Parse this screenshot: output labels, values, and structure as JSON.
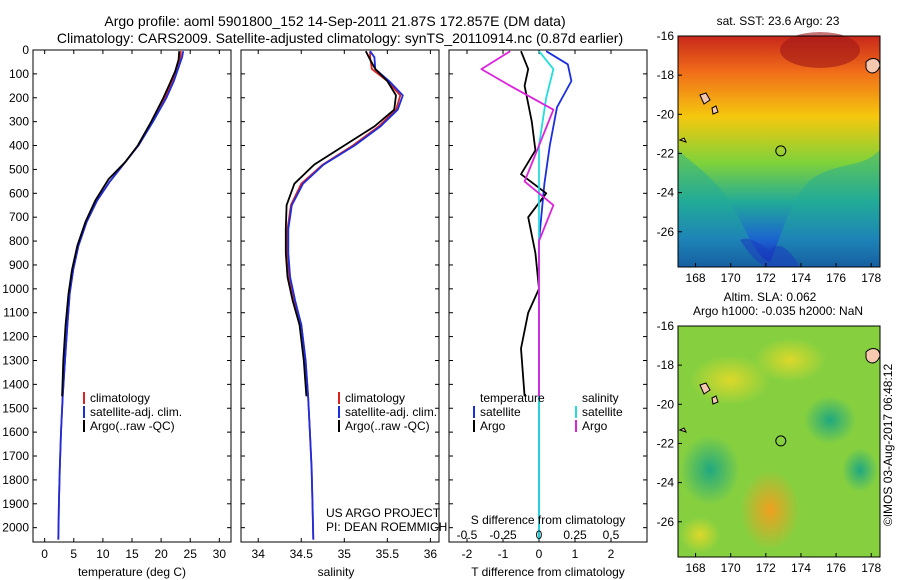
{
  "titles": {
    "line1": "Argo profile: aoml 5901800_152 14-Sep-2011 21.87S 172.857E (DM data)",
    "line2": "Climatology: CARS2009. Satellite-adjusted climatology: synTS_20110914.nc (0.87d earlier)"
  },
  "colors": {
    "climatology": "#dd2222",
    "satellite": "#1a2ee0",
    "argo": "#000000",
    "salinity_sat": "#22dddd",
    "salinity_argo": "#dd22dd"
  },
  "legend": {
    "climatology": "climatology",
    "satellite_adj": "satellite-adj. clim.",
    "argo_raw": "Argo(..raw -QC)"
  },
  "diff_legend": {
    "temperature_header": "temperature",
    "salinity_header": "salinity",
    "satellite": "satellite",
    "argo": "Argo"
  },
  "credits": {
    "line1": "US ARGO PROJECT",
    "line2": "PI: DEAN ROEMMICH"
  },
  "map_titles": {
    "sst": "sat. SST: 23.6 Argo: 23",
    "sla1": "Altim. SLA: 0.062",
    "sla2": "Argo h1000: -0.035 h2000: NaN"
  },
  "watermark": "©IMOS 03-Aug-2017 06:48:12",
  "chart_data": [
    {
      "type": "line",
      "name": "temperature",
      "xlabel": "temperature (deg C)",
      "ylabel": "",
      "xlim": [
        -2,
        32
      ],
      "ylim": [
        2060,
        0
      ],
      "xticks": [
        0,
        5,
        10,
        15,
        20,
        25,
        30
      ],
      "yticks": [
        0,
        100,
        200,
        300,
        400,
        500,
        600,
        700,
        800,
        900,
        1000,
        1100,
        1200,
        1300,
        1400,
        1500,
        1600,
        1700,
        1800,
        1900,
        2000
      ],
      "series": [
        {
          "name": "climatology",
          "points": [
            [
              23.4,
              5
            ],
            [
              23.3,
              30
            ],
            [
              22.6,
              80
            ],
            [
              21.9,
              130
            ],
            [
              20.7,
              200
            ],
            [
              18.5,
              300
            ],
            [
              16.1,
              400
            ],
            [
              13.5,
              480
            ],
            [
              11.2,
              550
            ],
            [
              9.0,
              630
            ],
            [
              7.2,
              720
            ],
            [
              5.8,
              820
            ],
            [
              4.9,
              920
            ],
            [
              4.3,
              1020
            ],
            [
              3.9,
              1150
            ],
            [
              3.5,
              1300
            ],
            [
              3.1,
              1450
            ],
            [
              2.8,
              1600
            ],
            [
              2.6,
              1750
            ],
            [
              2.45,
              1900
            ],
            [
              2.35,
              2050
            ]
          ]
        },
        {
          "name": "satellite",
          "points": [
            [
              23.8,
              5
            ],
            [
              23.6,
              30
            ],
            [
              22.9,
              80
            ],
            [
              22.2,
              130
            ],
            [
              20.9,
              200
            ],
            [
              18.6,
              300
            ],
            [
              16.1,
              400
            ],
            [
              13.5,
              480
            ],
            [
              11.2,
              550
            ],
            [
              9.0,
              630
            ],
            [
              7.2,
              720
            ],
            [
              5.8,
              820
            ],
            [
              4.9,
              920
            ],
            [
              4.3,
              1020
            ],
            [
              3.9,
              1150
            ],
            [
              3.5,
              1300
            ],
            [
              3.1,
              1450
            ],
            [
              2.8,
              1600
            ],
            [
              2.6,
              1750
            ],
            [
              2.45,
              1900
            ],
            [
              2.35,
              2050
            ]
          ]
        },
        {
          "name": "argo",
          "points": [
            [
              23.1,
              5
            ],
            [
              23.0,
              40
            ],
            [
              22.4,
              90
            ],
            [
              21.5,
              140
            ],
            [
              20.4,
              200
            ],
            [
              18.3,
              300
            ],
            [
              16.0,
              400
            ],
            [
              13.8,
              470
            ],
            [
              11.0,
              540
            ],
            [
              8.7,
              630
            ],
            [
              7.0,
              720
            ],
            [
              5.6,
              820
            ],
            [
              4.7,
              920
            ],
            [
              4.1,
              1020
            ],
            [
              3.6,
              1150
            ],
            [
              3.2,
              1300
            ],
            [
              3.0,
              1450
            ]
          ]
        }
      ]
    },
    {
      "type": "line",
      "name": "salinity",
      "xlabel": "salinity",
      "ylabel": "",
      "xlim": [
        33.8,
        36.1
      ],
      "ylim": [
        2060,
        0
      ],
      "xticks": [
        34,
        34.5,
        35,
        35.5,
        36
      ],
      "series": [
        {
          "name": "climatology",
          "points": [
            [
              35.3,
              5
            ],
            [
              35.3,
              30
            ],
            [
              35.32,
              80
            ],
            [
              35.5,
              130
            ],
            [
              35.65,
              190
            ],
            [
              35.6,
              250
            ],
            [
              35.4,
              320
            ],
            [
              35.1,
              400
            ],
            [
              34.75,
              480
            ],
            [
              34.5,
              560
            ],
            [
              34.38,
              650
            ],
            [
              34.34,
              750
            ],
            [
              34.34,
              850
            ],
            [
              34.36,
              950
            ],
            [
              34.42,
              1050
            ],
            [
              34.5,
              1150
            ],
            [
              34.55,
              1300
            ],
            [
              34.58,
              1450
            ],
            [
              34.6,
              1600
            ],
            [
              34.62,
              1750
            ],
            [
              34.63,
              1900
            ],
            [
              34.64,
              2050
            ]
          ]
        },
        {
          "name": "satellite",
          "points": [
            [
              35.3,
              5
            ],
            [
              35.35,
              30
            ],
            [
              35.36,
              80
            ],
            [
              35.52,
              130
            ],
            [
              35.68,
              190
            ],
            [
              35.62,
              250
            ],
            [
              35.42,
              320
            ],
            [
              35.12,
              400
            ],
            [
              34.76,
              480
            ],
            [
              34.52,
              560
            ],
            [
              34.39,
              650
            ],
            [
              34.35,
              750
            ],
            [
              34.35,
              850
            ],
            [
              34.37,
              950
            ],
            [
              34.43,
              1050
            ],
            [
              34.5,
              1150
            ],
            [
              34.55,
              1300
            ],
            [
              34.58,
              1450
            ],
            [
              34.6,
              1600
            ],
            [
              34.62,
              1750
            ],
            [
              34.63,
              1900
            ],
            [
              34.64,
              2050
            ]
          ]
        },
        {
          "name": "argo",
          "points": [
            [
              35.25,
              5
            ],
            [
              35.3,
              40
            ],
            [
              35.36,
              80
            ],
            [
              35.5,
              130
            ],
            [
              35.6,
              190
            ],
            [
              35.58,
              250
            ],
            [
              35.35,
              320
            ],
            [
              35.0,
              400
            ],
            [
              34.65,
              480
            ],
            [
              34.42,
              560
            ],
            [
              34.33,
              650
            ],
            [
              34.32,
              750
            ],
            [
              34.32,
              850
            ],
            [
              34.34,
              950
            ],
            [
              34.4,
              1050
            ],
            [
              34.48,
              1150
            ],
            [
              34.53,
              1300
            ],
            [
              34.56,
              1450
            ]
          ]
        }
      ]
    },
    {
      "type": "line",
      "name": "differences",
      "xlabel": "T difference from climatology",
      "xlabel2": "S difference from climatology",
      "xlim": [
        -2.5,
        3
      ],
      "ylim": [
        2060,
        0
      ],
      "xticks": [
        -2,
        -1,
        0,
        1,
        2
      ],
      "sticks_labels": [
        "-0.5",
        "-0.25",
        "0",
        "0.25",
        "0.5"
      ],
      "series": [
        {
          "name": "temperature satellite",
          "points": [
            [
              0.2,
              5
            ],
            [
              0.8,
              60
            ],
            [
              0.9,
              130
            ],
            [
              0.5,
              240
            ],
            [
              0.3,
              400
            ],
            [
              0.15,
              560
            ],
            [
              0.0,
              800
            ],
            [
              0.0,
              1200
            ],
            [
              0.0,
              1600
            ],
            [
              0.0,
              2050
            ]
          ]
        },
        {
          "name": "temperature argo",
          "points": [
            [
              -0.5,
              5
            ],
            [
              -0.3,
              80
            ],
            [
              -0.4,
              150
            ],
            [
              -0.2,
              300
            ],
            [
              -0.1,
              420
            ],
            [
              -0.5,
              520
            ],
            [
              0.2,
              600
            ],
            [
              -0.3,
              700
            ],
            [
              -0.1,
              850
            ],
            [
              0.0,
              1000
            ],
            [
              -0.3,
              1100
            ],
            [
              -0.5,
              1250
            ],
            [
              -0.4,
              1450
            ]
          ]
        },
        {
          "name": "salinity satellite",
          "points": [
            [
              0.0,
              5
            ],
            [
              0.1,
              80
            ],
            [
              0.05,
              200
            ],
            [
              0.0,
              400
            ],
            [
              0.0,
              700
            ],
            [
              0.0,
              1000
            ],
            [
              0.0,
              1500
            ],
            [
              0.0,
              2050
            ]
          ]
        },
        {
          "name": "salinity argo",
          "points": [
            [
              -0.2,
              5
            ],
            [
              -0.4,
              80
            ],
            [
              -0.2,
              150
            ],
            [
              0.1,
              250
            ],
            [
              0.0,
              400
            ],
            [
              -0.1,
              550
            ],
            [
              0.1,
              650
            ],
            [
              0.0,
              800
            ],
            [
              0.0,
              1000
            ],
            [
              0.0,
              1450
            ]
          ]
        }
      ]
    },
    {
      "type": "heatmap",
      "name": "sst-map",
      "xticks": [
        168,
        170,
        172,
        174,
        176,
        178
      ],
      "yticks": [
        -16,
        -18,
        -20,
        -22,
        -24,
        -26
      ],
      "xlim": [
        167,
        178.5
      ],
      "ylim": [
        -27.8,
        -16
      ],
      "marker": [
        172.85,
        -21.87
      ]
    },
    {
      "type": "heatmap",
      "name": "sla-map",
      "xticks": [
        168,
        170,
        172,
        174,
        176,
        178
      ],
      "yticks": [
        -16,
        -18,
        -20,
        -22,
        -24,
        -26
      ],
      "xlim": [
        167,
        178.5
      ],
      "ylim": [
        -27.8,
        -16
      ],
      "marker": [
        172.85,
        -21.87
      ]
    }
  ]
}
